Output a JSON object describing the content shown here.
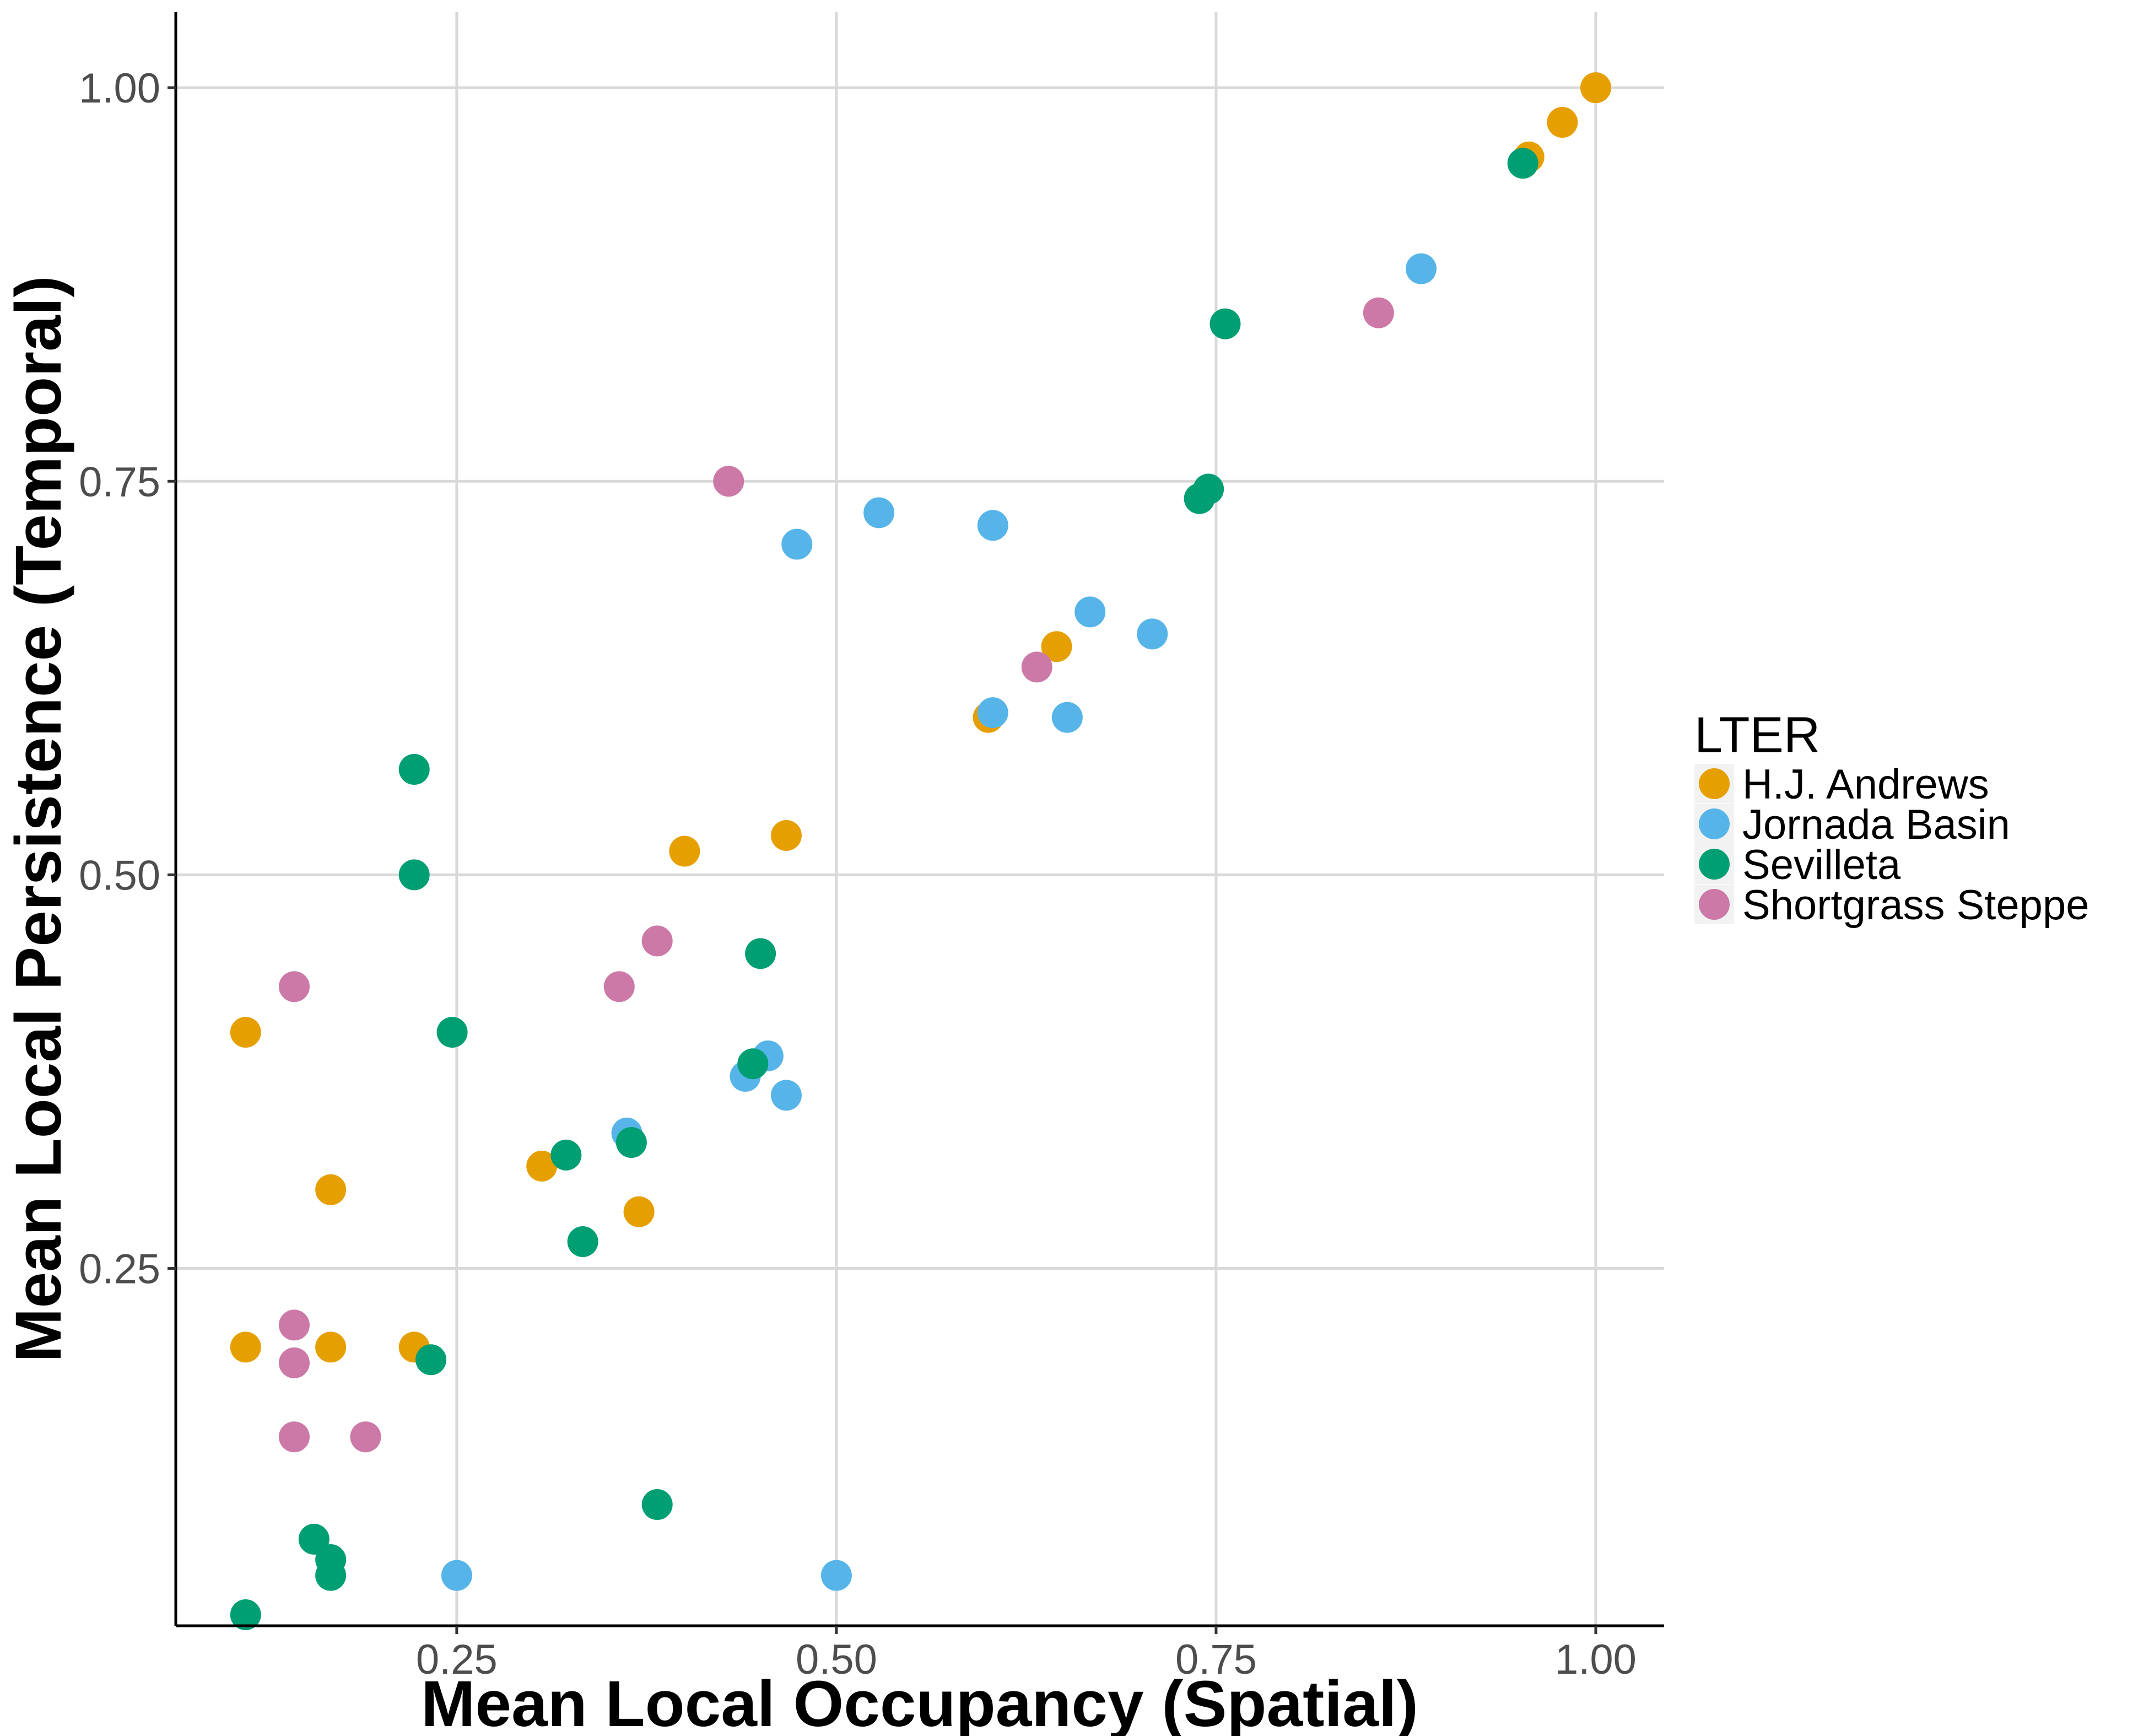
{
  "chart_data": {
    "type": "scatter",
    "xlabel": "Mean Local Occupancy (Spatial)",
    "ylabel": "Mean Local Persistence (Temporal)",
    "xlim": [
      0.065,
      1.045
    ],
    "ylim": [
      0.023,
      1.048
    ],
    "x_ticks": [
      0.25,
      0.5,
      0.75,
      1.0
    ],
    "x_tick_labels": [
      "0.25",
      "0.50",
      "0.75",
      "1.00"
    ],
    "y_ticks": [
      0.25,
      0.5,
      0.75,
      1.0
    ],
    "y_tick_labels": [
      "0.25",
      "0.50",
      "0.75",
      "1.00"
    ],
    "grid": true,
    "legend": {
      "title": "LTER",
      "placement": "right"
    },
    "series": [
      {
        "name": "H.J. Andrews",
        "color": "#E69F00",
        "points": [
          [
            1.0,
            1.0
          ],
          [
            0.978,
            0.978
          ],
          [
            0.956,
            0.956
          ],
          [
            0.645,
            0.645
          ],
          [
            0.6,
            0.6
          ],
          [
            0.4,
            0.515
          ],
          [
            0.467,
            0.525
          ],
          [
            0.111,
            0.4
          ],
          [
            0.167,
            0.3
          ],
          [
            0.306,
            0.315
          ],
          [
            0.37,
            0.286
          ],
          [
            0.111,
            0.2
          ],
          [
            0.167,
            0.2
          ],
          [
            0.222,
            0.2
          ]
        ]
      },
      {
        "name": "Jornada Basin",
        "color": "#56B4E9",
        "points": [
          [
            0.885,
            0.885
          ],
          [
            0.528,
            0.73
          ],
          [
            0.474,
            0.71
          ],
          [
            0.603,
            0.722
          ],
          [
            0.667,
            0.667
          ],
          [
            0.708,
            0.653
          ],
          [
            0.603,
            0.603
          ],
          [
            0.652,
            0.6
          ],
          [
            0.455,
            0.385
          ],
          [
            0.44,
            0.372
          ],
          [
            0.467,
            0.36
          ],
          [
            0.362,
            0.336
          ],
          [
            0.25,
            0.055
          ],
          [
            0.5,
            0.055
          ]
        ]
      },
      {
        "name": "Sevilleta",
        "color": "#009E73",
        "points": [
          [
            0.952,
            0.952
          ],
          [
            0.756,
            0.85
          ],
          [
            0.745,
            0.745
          ],
          [
            0.739,
            0.739
          ],
          [
            0.222,
            0.567
          ],
          [
            0.222,
            0.5
          ],
          [
            0.45,
            0.45
          ],
          [
            0.247,
            0.4
          ],
          [
            0.445,
            0.38
          ],
          [
            0.322,
            0.322
          ],
          [
            0.365,
            0.33
          ],
          [
            0.333,
            0.267
          ],
          [
            0.233,
            0.192
          ],
          [
            0.382,
            0.1
          ],
          [
            0.156,
            0.078
          ],
          [
            0.167,
            0.065
          ],
          [
            0.167,
            0.055
          ],
          [
            0.111,
            0.03
          ]
        ]
      },
      {
        "name": "Shortgrass Steppe",
        "color": "#CC79A7",
        "points": [
          [
            0.857,
            0.857
          ],
          [
            0.429,
            0.75
          ],
          [
            0.632,
            0.632
          ],
          [
            0.382,
            0.458
          ],
          [
            0.357,
            0.429
          ],
          [
            0.143,
            0.429
          ],
          [
            0.143,
            0.214
          ],
          [
            0.143,
            0.19
          ],
          [
            0.143,
            0.143
          ],
          [
            0.19,
            0.143
          ]
        ]
      }
    ]
  }
}
